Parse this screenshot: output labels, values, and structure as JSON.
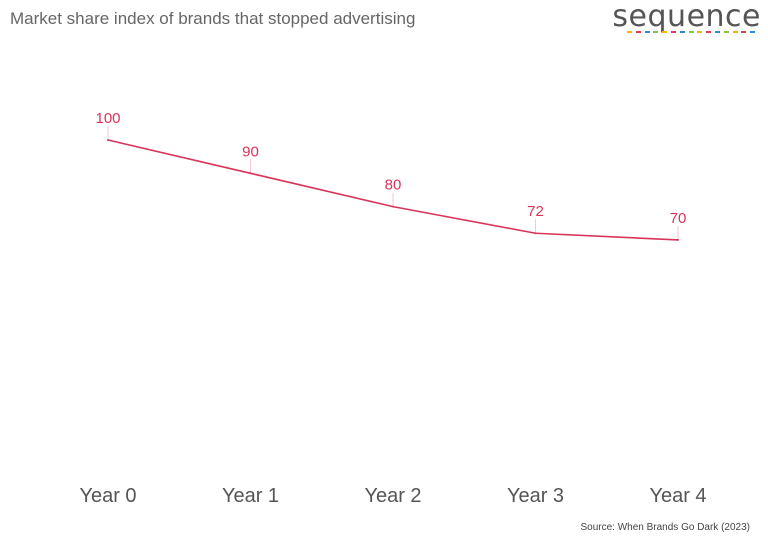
{
  "header": {
    "title": "Market share index of brands that stopped advertising",
    "logo_text": "sequence",
    "logo_dash_colors": [
      "#f2b705",
      "#e03a5a",
      "#2e8bd0",
      "#8bc34a",
      "#f2b705",
      "#e03a5a",
      "#2e8bd0",
      "#8bc34a",
      "#f2b705",
      "#e03a5a",
      "#2e8bd0",
      "#8bc34a",
      "#f2b705",
      "#e03a5a",
      "#2e8bd0"
    ]
  },
  "footer": {
    "source": "Source: When Brands Go Dark (2023)"
  },
  "chart_data": {
    "type": "line",
    "title": "Market share index of brands that stopped advertising",
    "categories": [
      "Year 0",
      "Year 1",
      "Year 2",
      "Year 3",
      "Year 4"
    ],
    "series": [
      {
        "values": [
          100,
          90,
          80,
          72,
          70
        ],
        "color": "#d9345a"
      }
    ],
    "data_labels": [
      "100",
      "90",
      "80",
      "72",
      "70"
    ],
    "grid": false,
    "legend": "none",
    "xlabel": "",
    "ylabel": "",
    "y_axis_visible": false
  }
}
